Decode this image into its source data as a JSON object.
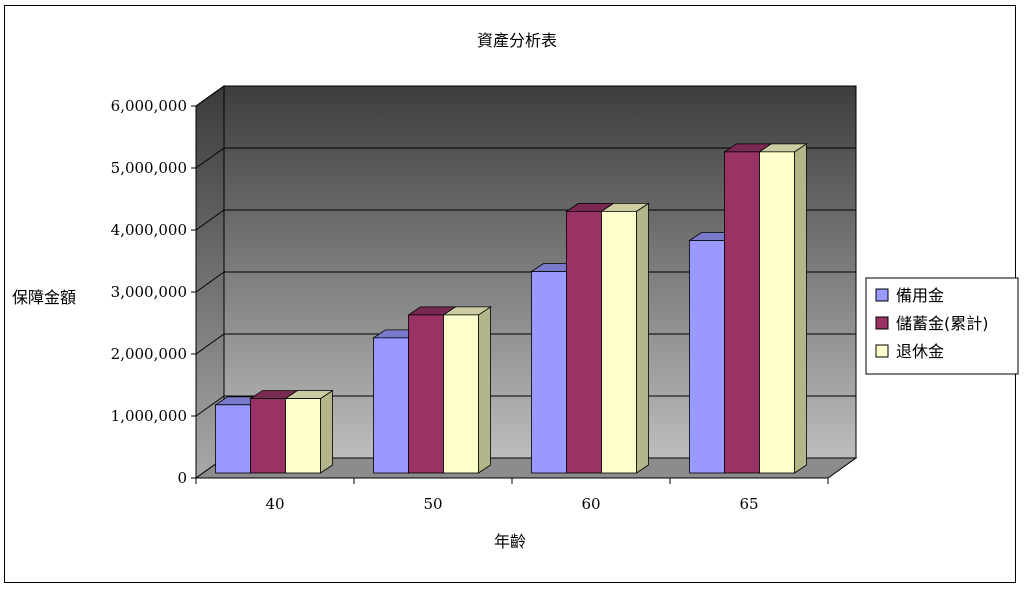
{
  "chart_data": {
    "type": "bar",
    "title": "資產分析表",
    "xlabel": "年齡",
    "ylabel": "保障金額",
    "categories": [
      "40",
      "50",
      "60",
      "65"
    ],
    "series": [
      {
        "name": "備用金",
        "values": [
          1100000,
          2180000,
          3250000,
          3750000
        ],
        "color": "#9999ff"
      },
      {
        "name": "儲蓄金(累計)",
        "values": [
          1200000,
          2550000,
          4220000,
          5180000
        ],
        "color": "#993366"
      },
      {
        "name": "退休金",
        "values": [
          1200000,
          2550000,
          4220000,
          5180000
        ],
        "color": "#ffffcc"
      }
    ],
    "yticks": [
      "0",
      "1,000,000",
      "2,000,000",
      "3,000,000",
      "4,000,000",
      "5,000,000",
      "6,000,000"
    ],
    "ylim": [
      0,
      6000000
    ],
    "grid": true,
    "legend": "right"
  }
}
